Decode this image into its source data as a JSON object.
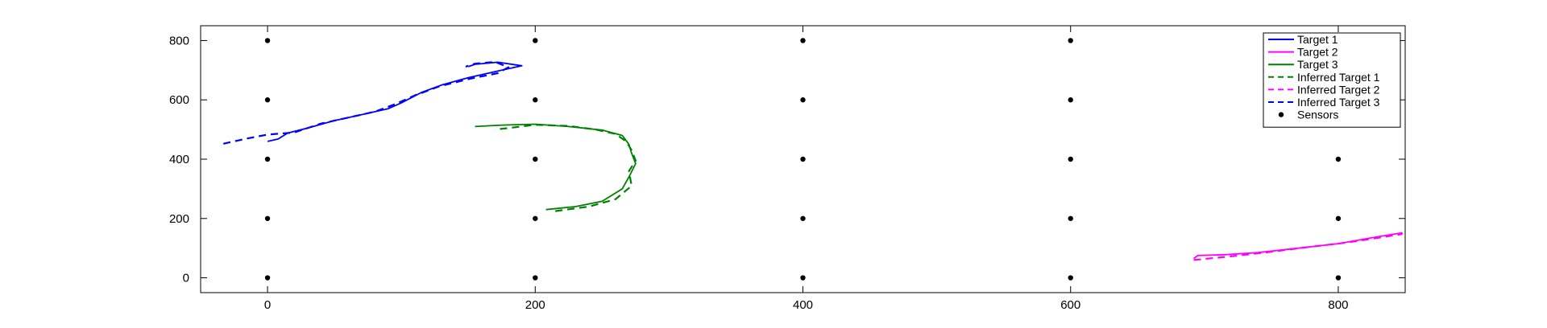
{
  "chart_data": {
    "type": "line",
    "title": "",
    "xlabel": "",
    "ylabel": "",
    "xlim": [
      -50,
      850
    ],
    "ylim": [
      -50,
      850
    ],
    "xticks": [
      0,
      200,
      400,
      600,
      800
    ],
    "yticks": [
      0,
      200,
      400,
      600,
      800
    ],
    "grid": false,
    "legend_position": "top-right",
    "series": [
      {
        "name": "Target 1",
        "color": "#0000ff",
        "style": "solid",
        "points": [
          [
            0,
            460
          ],
          [
            8,
            468
          ],
          [
            15,
            488
          ],
          [
            30,
            505
          ],
          [
            50,
            530
          ],
          [
            70,
            550
          ],
          [
            90,
            570
          ],
          [
            100,
            590
          ],
          [
            115,
            625
          ],
          [
            130,
            650
          ],
          [
            150,
            675
          ],
          [
            175,
            700
          ],
          [
            190,
            715
          ],
          [
            172,
            727
          ],
          [
            155,
            720
          ],
          [
            150,
            712
          ]
        ]
      },
      {
        "name": "Target 2",
        "color": "#ff00ff",
        "style": "solid",
        "points": [
          [
            692,
            65
          ],
          [
            695,
            75
          ],
          [
            715,
            78
          ],
          [
            740,
            85
          ],
          [
            770,
            100
          ],
          [
            800,
            115
          ],
          [
            825,
            135
          ],
          [
            848,
            152
          ]
        ]
      },
      {
        "name": "Target 3",
        "color": "#008000",
        "style": "solid",
        "points": [
          [
            208,
            230
          ],
          [
            230,
            240
          ],
          [
            250,
            258
          ],
          [
            265,
            300
          ],
          [
            270,
            340
          ],
          [
            275,
            385
          ],
          [
            272,
            420
          ],
          [
            270,
            450
          ],
          [
            265,
            480
          ],
          [
            250,
            498
          ],
          [
            225,
            510
          ],
          [
            200,
            518
          ],
          [
            175,
            515
          ],
          [
            155,
            510
          ]
        ]
      },
      {
        "name": "Inferred Target 1",
        "color": "#008000",
        "style": "dashed",
        "points": [
          [
            215,
            225
          ],
          [
            240,
            240
          ],
          [
            260,
            265
          ],
          [
            272,
            310
          ],
          [
            270,
            360
          ],
          [
            275,
            395
          ],
          [
            272,
            430
          ],
          [
            268,
            460
          ],
          [
            260,
            485
          ],
          [
            245,
            500
          ],
          [
            225,
            512
          ],
          [
            200,
            516
          ],
          [
            180,
            505
          ],
          [
            170,
            500
          ]
        ]
      },
      {
        "name": "Inferred Target 2",
        "color": "#ff00ff",
        "style": "dashed",
        "points": [
          [
            692,
            60
          ],
          [
            715,
            70
          ],
          [
            745,
            85
          ],
          [
            775,
            102
          ],
          [
            805,
            118
          ],
          [
            830,
            135
          ],
          [
            848,
            148
          ]
        ]
      },
      {
        "name": "Inferred Target 3",
        "color": "#0000ff",
        "style": "dashed",
        "points": [
          [
            -33,
            452
          ],
          [
            -15,
            470
          ],
          [
            0,
            483
          ],
          [
            20,
            490
          ],
          [
            40,
            520
          ],
          [
            60,
            540
          ],
          [
            80,
            560
          ],
          [
            95,
            585
          ],
          [
            110,
            615
          ],
          [
            128,
            645
          ],
          [
            150,
            670
          ],
          [
            172,
            690
          ],
          [
            180,
            710
          ],
          [
            170,
            728
          ],
          [
            155,
            722
          ],
          [
            148,
            712
          ]
        ]
      },
      {
        "name": "Sensors",
        "color": "#000000",
        "style": "markers",
        "points": [
          [
            0,
            0
          ],
          [
            0,
            200
          ],
          [
            0,
            400
          ],
          [
            0,
            600
          ],
          [
            0,
            800
          ],
          [
            200,
            0
          ],
          [
            200,
            200
          ],
          [
            200,
            400
          ],
          [
            200,
            600
          ],
          [
            200,
            800
          ],
          [
            400,
            0
          ],
          [
            400,
            200
          ],
          [
            400,
            400
          ],
          [
            400,
            600
          ],
          [
            400,
            800
          ],
          [
            600,
            0
          ],
          [
            600,
            200
          ],
          [
            600,
            400
          ],
          [
            600,
            600
          ],
          [
            600,
            800
          ],
          [
            800,
            0
          ],
          [
            800,
            200
          ],
          [
            800,
            400
          ]
        ]
      }
    ]
  }
}
